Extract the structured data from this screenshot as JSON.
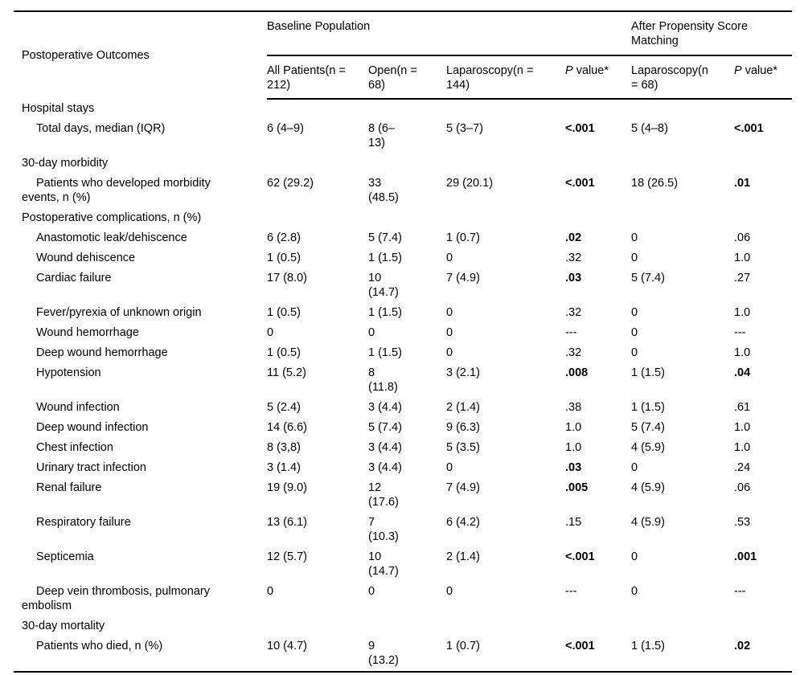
{
  "page": {
    "background": "#ffffff",
    "text_color": "#000000"
  },
  "table": {
    "stub_header": "Postoperative Outcomes",
    "groups": {
      "baseline": "Baseline Population",
      "psm": "After Propensity Score\nMatching"
    },
    "columns": {
      "all_patients": "All Patients(n =\n212)",
      "open": "Open(n =\n68)",
      "laparoscopy_baseline": "Laparoscopy(n =\n144)",
      "p_value_baseline": {
        "italic": "P",
        "rest": " value*"
      },
      "laparoscopy_psm": "Laparoscopy(n\n= 68)",
      "p_value_psm": {
        "italic": "P",
        "rest": " value*"
      }
    },
    "rows": [
      {
        "label": "Hospital stays",
        "indent": false,
        "cells": []
      },
      {
        "label": "Total days, median (IQR)",
        "indent": true,
        "cells": [
          "6 (4–9)",
          "8 (6–\n13)",
          "5 (3–7)",
          "<.001",
          "5 (4–8)",
          "<.001"
        ],
        "bold": [
          false,
          false,
          false,
          true,
          false,
          true
        ]
      },
      {
        "label": "30-day morbidity",
        "indent": false,
        "cells": []
      },
      {
        "label": "Patients who developed morbidity\nevents, n (%)",
        "indent": true,
        "cells": [
          "62 (29.2)",
          "33\n(48.5)",
          "29 (20.1)",
          "<.001",
          "18 (26.5)",
          ".01"
        ],
        "bold": [
          false,
          false,
          false,
          true,
          false,
          true
        ]
      },
      {
        "label": "Postoperative complications, n (%)",
        "indent": false,
        "cells": []
      },
      {
        "label": "Anastomotic leak/dehiscence",
        "indent": true,
        "cells": [
          "6 (2.8)",
          "5 (7.4)",
          "1 (0.7)",
          ".02",
          "0",
          ".06"
        ],
        "bold": [
          false,
          false,
          false,
          true,
          false,
          false
        ]
      },
      {
        "label": "Wound dehiscence",
        "indent": true,
        "cells": [
          "1 (0.5)",
          "1 (1.5)",
          "0",
          ".32",
          "0",
          "1.0"
        ],
        "bold": [
          false,
          false,
          false,
          false,
          false,
          false
        ]
      },
      {
        "label": "Cardiac failure",
        "indent": true,
        "cells": [
          "17 (8.0)",
          "10\n(14.7)",
          "7 (4.9)",
          ".03",
          "5 (7.4)",
          ".27"
        ],
        "bold": [
          false,
          false,
          false,
          true,
          false,
          false
        ]
      },
      {
        "label": "Fever/pyrexia of unknown origin",
        "indent": true,
        "cells": [
          "1 (0.5)",
          "1 (1.5)",
          "0",
          ".32",
          "0",
          "1.0"
        ],
        "bold": [
          false,
          false,
          false,
          false,
          false,
          false
        ]
      },
      {
        "label": "Wound hemorrhage",
        "indent": true,
        "cells": [
          "0",
          "0",
          "0",
          "---",
          "0",
          "---"
        ],
        "bold": [
          false,
          false,
          false,
          false,
          false,
          false
        ]
      },
      {
        "label": "Deep wound hemorrhage",
        "indent": true,
        "cells": [
          "1 (0.5)",
          "1 (1.5)",
          "0",
          ".32",
          "0",
          "1.0"
        ],
        "bold": [
          false,
          false,
          false,
          false,
          false,
          false
        ]
      },
      {
        "label": "Hypotension",
        "indent": true,
        "cells": [
          "11 (5.2)",
          "8\n(11.8)",
          "3 (2.1)",
          ".008",
          "1 (1.5)",
          ".04"
        ],
        "bold": [
          false,
          false,
          false,
          true,
          false,
          true
        ]
      },
      {
        "label": "Wound infection",
        "indent": true,
        "cells": [
          "5 (2.4)",
          "3 (4.4)",
          "2 (1.4)",
          ".38",
          "1 (1.5)",
          ".61"
        ],
        "bold": [
          false,
          false,
          false,
          false,
          false,
          false
        ]
      },
      {
        "label": "Deep wound infection",
        "indent": true,
        "cells": [
          "14 (6.6)",
          "5 (7.4)",
          "9 (6.3)",
          "1.0",
          "5 (7.4)",
          "1.0"
        ],
        "bold": [
          false,
          false,
          false,
          false,
          false,
          false
        ]
      },
      {
        "label": "Chest infection",
        "indent": true,
        "cells": [
          "8 (3,8)",
          "3 (4.4)",
          "5 (3.5)",
          "1.0",
          "4 (5.9)",
          "1.0"
        ],
        "bold": [
          false,
          false,
          false,
          false,
          false,
          false
        ]
      },
      {
        "label": "Urinary tract infection",
        "indent": true,
        "cells": [
          "3 (1.4)",
          "3 (4.4)",
          "0",
          ".03",
          "0",
          ".24"
        ],
        "bold": [
          false,
          false,
          false,
          true,
          false,
          false
        ]
      },
      {
        "label": "Renal failure",
        "indent": true,
        "cells": [
          "19 (9.0)",
          "12\n(17.6)",
          "7 (4.9)",
          ".005",
          "4 (5.9)",
          ".06"
        ],
        "bold": [
          false,
          false,
          false,
          true,
          false,
          false
        ]
      },
      {
        "label": "Respiratory failure",
        "indent": true,
        "cells": [
          "13 (6.1)",
          "7\n(10.3)",
          "6 (4.2)",
          ".15",
          "4 (5.9)",
          ".53"
        ],
        "bold": [
          false,
          false,
          false,
          false,
          false,
          false
        ]
      },
      {
        "label": "Septicemia",
        "indent": true,
        "cells": [
          "12 (5.7)",
          "10\n(14.7)",
          "2 (1.4)",
          "<.001",
          "0",
          ".001"
        ],
        "bold": [
          false,
          false,
          false,
          true,
          false,
          true
        ]
      },
      {
        "label": "Deep vein thrombosis, pulmonary\nembolism",
        "indent": true,
        "cells": [
          "0",
          "0",
          "0",
          "---",
          "0",
          "---"
        ],
        "bold": [
          false,
          false,
          false,
          false,
          false,
          false
        ]
      },
      {
        "label": "30-day mortality",
        "indent": false,
        "cells": []
      },
      {
        "label": "Patients who died, n (%)",
        "indent": true,
        "cells": [
          "10 (4.7)",
          "9\n(13.2)",
          "1 (0.7)",
          "<.001",
          "1 (1.5)",
          ".02"
        ],
        "bold": [
          false,
          false,
          false,
          true,
          false,
          true
        ]
      }
    ]
  }
}
